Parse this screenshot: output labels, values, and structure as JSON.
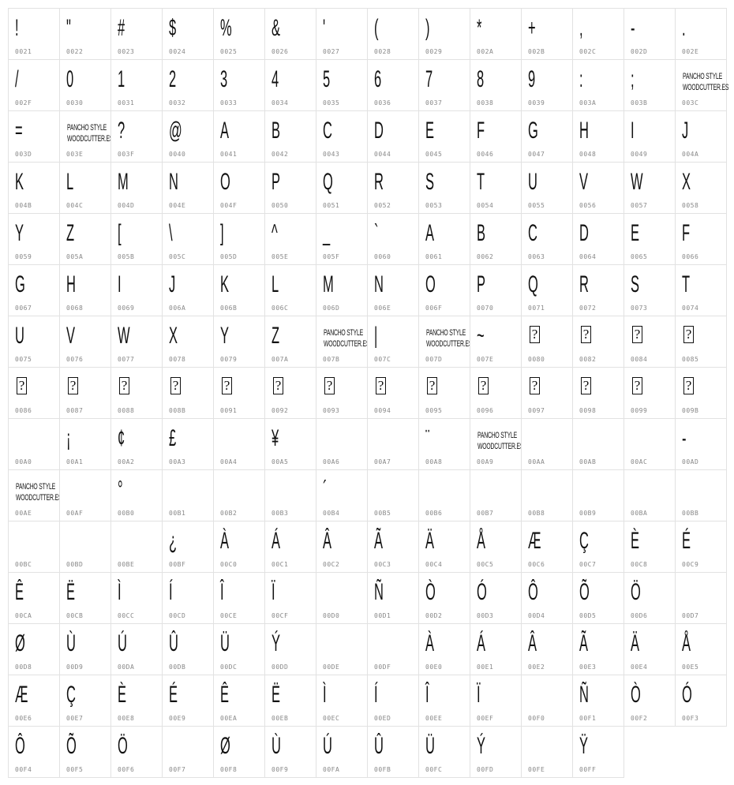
{
  "logo_text": "PANCHO STYLE\nWOODCUTTER.ES",
  "missing_glyph": "?",
  "cells": [
    {
      "code": "0021",
      "glyph": "!"
    },
    {
      "code": "0022",
      "glyph": "\""
    },
    {
      "code": "0023",
      "glyph": "#"
    },
    {
      "code": "0024",
      "glyph": "$"
    },
    {
      "code": "0025",
      "glyph": "%"
    },
    {
      "code": "0026",
      "glyph": "&"
    },
    {
      "code": "0027",
      "glyph": "'"
    },
    {
      "code": "0028",
      "glyph": "("
    },
    {
      "code": "0029",
      "glyph": ")"
    },
    {
      "code": "002A",
      "glyph": "*"
    },
    {
      "code": "002B",
      "glyph": "+"
    },
    {
      "code": "002C",
      "glyph": ","
    },
    {
      "code": "002D",
      "glyph": "-"
    },
    {
      "code": "002E",
      "glyph": "."
    },
    {
      "code": "002F",
      "glyph": "/"
    },
    {
      "code": "0030",
      "glyph": "0"
    },
    {
      "code": "0031",
      "glyph": "1"
    },
    {
      "code": "0032",
      "glyph": "2"
    },
    {
      "code": "0033",
      "glyph": "3"
    },
    {
      "code": "0034",
      "glyph": "4"
    },
    {
      "code": "0035",
      "glyph": "5"
    },
    {
      "code": "0036",
      "glyph": "6"
    },
    {
      "code": "0037",
      "glyph": "7"
    },
    {
      "code": "0038",
      "glyph": "8"
    },
    {
      "code": "0039",
      "glyph": "9"
    },
    {
      "code": "003A",
      "glyph": ":"
    },
    {
      "code": "003B",
      "glyph": ";"
    },
    {
      "code": "003C",
      "type": "logo"
    },
    {
      "code": "003D",
      "glyph": "="
    },
    {
      "code": "003E",
      "type": "logo"
    },
    {
      "code": "003F",
      "glyph": "?"
    },
    {
      "code": "0040",
      "glyph": "@"
    },
    {
      "code": "0041",
      "glyph": "A"
    },
    {
      "code": "0042",
      "glyph": "B"
    },
    {
      "code": "0043",
      "glyph": "C"
    },
    {
      "code": "0044",
      "glyph": "D"
    },
    {
      "code": "0045",
      "glyph": "E"
    },
    {
      "code": "0046",
      "glyph": "F"
    },
    {
      "code": "0047",
      "glyph": "G"
    },
    {
      "code": "0048",
      "glyph": "H"
    },
    {
      "code": "0049",
      "glyph": "I"
    },
    {
      "code": "004A",
      "glyph": "J"
    },
    {
      "code": "004B",
      "glyph": "K"
    },
    {
      "code": "004C",
      "glyph": "L"
    },
    {
      "code": "004D",
      "glyph": "M"
    },
    {
      "code": "004E",
      "glyph": "N"
    },
    {
      "code": "004F",
      "glyph": "O"
    },
    {
      "code": "0050",
      "glyph": "P"
    },
    {
      "code": "0051",
      "glyph": "Q"
    },
    {
      "code": "0052",
      "glyph": "R"
    },
    {
      "code": "0053",
      "glyph": "S"
    },
    {
      "code": "0054",
      "glyph": "T"
    },
    {
      "code": "0055",
      "glyph": "U"
    },
    {
      "code": "0056",
      "glyph": "V"
    },
    {
      "code": "0057",
      "glyph": "W"
    },
    {
      "code": "0058",
      "glyph": "X"
    },
    {
      "code": "0059",
      "glyph": "Y"
    },
    {
      "code": "005A",
      "glyph": "Z"
    },
    {
      "code": "005B",
      "glyph": "["
    },
    {
      "code": "005C",
      "glyph": "\\"
    },
    {
      "code": "005D",
      "glyph": "]"
    },
    {
      "code": "005E",
      "glyph": "^"
    },
    {
      "code": "005F",
      "glyph": "_"
    },
    {
      "code": "0060",
      "glyph": "`"
    },
    {
      "code": "0061",
      "glyph": "A"
    },
    {
      "code": "0062",
      "glyph": "B"
    },
    {
      "code": "0063",
      "glyph": "C"
    },
    {
      "code": "0064",
      "glyph": "D"
    },
    {
      "code": "0065",
      "glyph": "E"
    },
    {
      "code": "0066",
      "glyph": "F"
    },
    {
      "code": "0067",
      "glyph": "G"
    },
    {
      "code": "0068",
      "glyph": "H"
    },
    {
      "code": "0069",
      "glyph": "I"
    },
    {
      "code": "006A",
      "glyph": "J"
    },
    {
      "code": "006B",
      "glyph": "K"
    },
    {
      "code": "006C",
      "glyph": "L"
    },
    {
      "code": "006D",
      "glyph": "M"
    },
    {
      "code": "006E",
      "glyph": "N"
    },
    {
      "code": "006F",
      "glyph": "O"
    },
    {
      "code": "0070",
      "glyph": "P"
    },
    {
      "code": "0071",
      "glyph": "Q"
    },
    {
      "code": "0072",
      "glyph": "R"
    },
    {
      "code": "0073",
      "glyph": "S"
    },
    {
      "code": "0074",
      "glyph": "T"
    },
    {
      "code": "0075",
      "glyph": "U"
    },
    {
      "code": "0076",
      "glyph": "V"
    },
    {
      "code": "0077",
      "glyph": "W"
    },
    {
      "code": "0078",
      "glyph": "X"
    },
    {
      "code": "0079",
      "glyph": "Y"
    },
    {
      "code": "007A",
      "glyph": "Z"
    },
    {
      "code": "007B",
      "type": "logo"
    },
    {
      "code": "007C",
      "glyph": "|"
    },
    {
      "code": "007D",
      "type": "logo"
    },
    {
      "code": "007E",
      "glyph": "~"
    },
    {
      "code": "0080",
      "type": "missing"
    },
    {
      "code": "0082",
      "type": "missing"
    },
    {
      "code": "0084",
      "type": "missing"
    },
    {
      "code": "0085",
      "type": "missing"
    },
    {
      "code": "0086",
      "type": "missing"
    },
    {
      "code": "0087",
      "type": "missing"
    },
    {
      "code": "0088",
      "type": "missing"
    },
    {
      "code": "008B",
      "type": "missing"
    },
    {
      "code": "0091",
      "type": "missing"
    },
    {
      "code": "0092",
      "type": "missing"
    },
    {
      "code": "0093",
      "type": "missing"
    },
    {
      "code": "0094",
      "type": "missing"
    },
    {
      "code": "0095",
      "type": "missing"
    },
    {
      "code": "0096",
      "type": "missing"
    },
    {
      "code": "0097",
      "type": "missing"
    },
    {
      "code": "0098",
      "type": "missing"
    },
    {
      "code": "0099",
      "type": "missing"
    },
    {
      "code": "009B",
      "type": "missing"
    },
    {
      "code": "00A0",
      "glyph": ""
    },
    {
      "code": "00A1",
      "glyph": "¡"
    },
    {
      "code": "00A2",
      "glyph": "¢"
    },
    {
      "code": "00A3",
      "glyph": "£"
    },
    {
      "code": "00A4",
      "glyph": ""
    },
    {
      "code": "00A5",
      "glyph": "¥"
    },
    {
      "code": "00A6",
      "glyph": ""
    },
    {
      "code": "00A7",
      "glyph": ""
    },
    {
      "code": "00A8",
      "glyph": "¨"
    },
    {
      "code": "00A9",
      "type": "logo"
    },
    {
      "code": "00AA",
      "glyph": ""
    },
    {
      "code": "00AB",
      "glyph": ""
    },
    {
      "code": "00AC",
      "glyph": ""
    },
    {
      "code": "00AD",
      "glyph": "-"
    },
    {
      "code": "00AE",
      "type": "logo"
    },
    {
      "code": "00AF",
      "glyph": ""
    },
    {
      "code": "00B0",
      "glyph": "°"
    },
    {
      "code": "00B1",
      "glyph": ""
    },
    {
      "code": "00B2",
      "glyph": ""
    },
    {
      "code": "00B3",
      "glyph": ""
    },
    {
      "code": "00B4",
      "glyph": "´"
    },
    {
      "code": "00B5",
      "glyph": ""
    },
    {
      "code": "00B6",
      "glyph": ""
    },
    {
      "code": "00B7",
      "glyph": ""
    },
    {
      "code": "00B8",
      "glyph": ""
    },
    {
      "code": "00B9",
      "glyph": ""
    },
    {
      "code": "00BA",
      "glyph": ""
    },
    {
      "code": "00BB",
      "glyph": ""
    },
    {
      "code": "00BC",
      "glyph": ""
    },
    {
      "code": "00BD",
      "glyph": ""
    },
    {
      "code": "00BE",
      "glyph": ""
    },
    {
      "code": "00BF",
      "glyph": "¿"
    },
    {
      "code": "00C0",
      "glyph": "À"
    },
    {
      "code": "00C1",
      "glyph": "Á"
    },
    {
      "code": "00C2",
      "glyph": "Â"
    },
    {
      "code": "00C3",
      "glyph": "Ã"
    },
    {
      "code": "00C4",
      "glyph": "Ä"
    },
    {
      "code": "00C5",
      "glyph": "Å"
    },
    {
      "code": "00C6",
      "glyph": "Æ"
    },
    {
      "code": "00C7",
      "glyph": "Ç"
    },
    {
      "code": "00C8",
      "glyph": "È"
    },
    {
      "code": "00C9",
      "glyph": "É"
    },
    {
      "code": "00CA",
      "glyph": "Ê"
    },
    {
      "code": "00CB",
      "glyph": "Ë"
    },
    {
      "code": "00CC",
      "glyph": "Ì"
    },
    {
      "code": "00CD",
      "glyph": "Í"
    },
    {
      "code": "00CE",
      "glyph": "Î"
    },
    {
      "code": "00CF",
      "glyph": "Ï"
    },
    {
      "code": "00D0",
      "glyph": ""
    },
    {
      "code": "00D1",
      "glyph": "Ñ"
    },
    {
      "code": "00D2",
      "glyph": "Ò"
    },
    {
      "code": "00D3",
      "glyph": "Ó"
    },
    {
      "code": "00D4",
      "glyph": "Ô"
    },
    {
      "code": "00D5",
      "glyph": "Õ"
    },
    {
      "code": "00D6",
      "glyph": "Ö"
    },
    {
      "code": "00D7",
      "glyph": ""
    },
    {
      "code": "00D8",
      "glyph": "Ø"
    },
    {
      "code": "00D9",
      "glyph": "Ù"
    },
    {
      "code": "00DA",
      "glyph": "Ú"
    },
    {
      "code": "00DB",
      "glyph": "Û"
    },
    {
      "code": "00DC",
      "glyph": "Ü"
    },
    {
      "code": "00DD",
      "glyph": "Ý"
    },
    {
      "code": "00DE",
      "glyph": ""
    },
    {
      "code": "00DF",
      "glyph": ""
    },
    {
      "code": "00E0",
      "glyph": "À"
    },
    {
      "code": "00E1",
      "glyph": "Á"
    },
    {
      "code": "00E2",
      "glyph": "Â"
    },
    {
      "code": "00E3",
      "glyph": "Ã"
    },
    {
      "code": "00E4",
      "glyph": "Ä"
    },
    {
      "code": "00E5",
      "glyph": "Å"
    },
    {
      "code": "00E6",
      "glyph": "Æ"
    },
    {
      "code": "00E7",
      "glyph": "Ç"
    },
    {
      "code": "00E8",
      "glyph": "È"
    },
    {
      "code": "00E9",
      "glyph": "É"
    },
    {
      "code": "00EA",
      "glyph": "Ê"
    },
    {
      "code": "00EB",
      "glyph": "Ë"
    },
    {
      "code": "00EC",
      "glyph": "Ì"
    },
    {
      "code": "00ED",
      "glyph": "Í"
    },
    {
      "code": "00EE",
      "glyph": "Î"
    },
    {
      "code": "00EF",
      "glyph": "Ï"
    },
    {
      "code": "00F0",
      "glyph": ""
    },
    {
      "code": "00F1",
      "glyph": "Ñ"
    },
    {
      "code": "00F2",
      "glyph": "Ò"
    },
    {
      "code": "00F3",
      "glyph": "Ó"
    },
    {
      "code": "00F4",
      "glyph": "Ô"
    },
    {
      "code": "00F5",
      "glyph": "Õ"
    },
    {
      "code": "00F6",
      "glyph": "Ö"
    },
    {
      "code": "00F7",
      "glyph": ""
    },
    {
      "code": "00F8",
      "glyph": "Ø"
    },
    {
      "code": "00F9",
      "glyph": "Ù"
    },
    {
      "code": "00FA",
      "glyph": "Ú"
    },
    {
      "code": "00FB",
      "glyph": "Û"
    },
    {
      "code": "00FC",
      "glyph": "Ü"
    },
    {
      "code": "00FD",
      "glyph": "Ý"
    },
    {
      "code": "00FE",
      "glyph": ""
    },
    {
      "code": "00FF",
      "glyph": "Ÿ"
    }
  ]
}
